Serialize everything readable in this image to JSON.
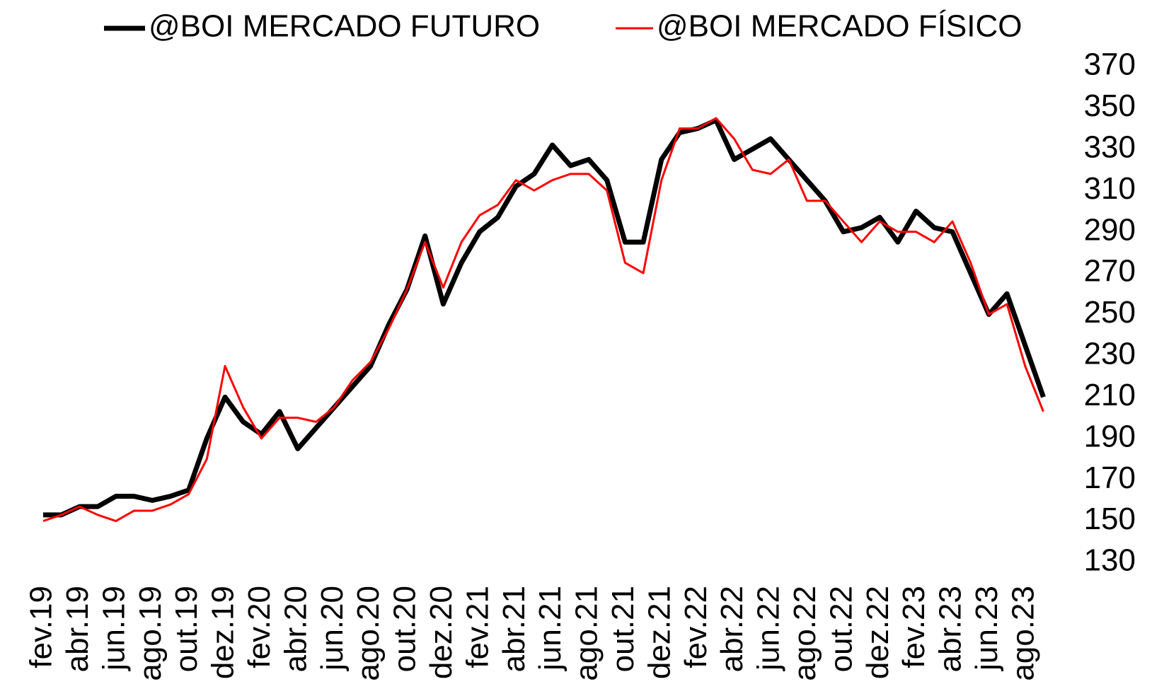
{
  "chart_data": {
    "type": "line",
    "categories": [
      "fev.19",
      null,
      "abr.19",
      null,
      "jun.19",
      null,
      "ago.19",
      null,
      "out.19",
      null,
      "dez.19",
      null,
      "fev.20",
      null,
      "abr.20",
      null,
      "jun.20",
      null,
      "ago.20",
      null,
      "out.20",
      null,
      "dez.20",
      null,
      "fev.21",
      null,
      "abr.21",
      null,
      "jun.21",
      null,
      "ago.21",
      null,
      "out.21",
      null,
      "dez.21",
      null,
      "fev.22",
      null,
      "abr.22",
      null,
      "jun.22",
      null,
      "ago.22",
      null,
      "out.22",
      null,
      "dez.22",
      null,
      "fev.23",
      null,
      "abr.23",
      null,
      "jun.23",
      null,
      "ago.23",
      null
    ],
    "series": [
      {
        "name": "@BOI MERCADO FUTURO",
        "color": "#000000",
        "values": [
          153,
          153,
          157,
          157,
          162,
          162,
          160,
          162,
          165,
          190,
          210,
          198,
          192,
          203,
          185,
          195,
          205,
          215,
          225,
          245,
          262,
          288,
          255,
          275,
          290,
          297,
          312,
          318,
          332,
          322,
          325,
          315,
          285,
          285,
          325,
          338,
          340,
          344,
          325,
          330,
          335,
          325,
          315,
          305,
          290,
          292,
          297,
          285,
          300,
          292,
          290,
          270,
          250,
          260,
          235,
          210
        ]
      },
      {
        "name": "@BOI MERCADO FÍSICO",
        "color": "#ff0000",
        "values": [
          150,
          153,
          157,
          153,
          150,
          155,
          155,
          158,
          163,
          180,
          225,
          205,
          190,
          200,
          200,
          198,
          205,
          218,
          227,
          243,
          262,
          285,
          263,
          285,
          298,
          303,
          315,
          310,
          315,
          318,
          318,
          310,
          275,
          270,
          315,
          340,
          340,
          345,
          335,
          320,
          318,
          325,
          305,
          305,
          295,
          285,
          295,
          290,
          290,
          285,
          295,
          275,
          250,
          255,
          225,
          203
        ]
      }
    ],
    "ylim": [
      130,
      370
    ],
    "yticks": [
      130,
      150,
      170,
      190,
      210,
      230,
      250,
      270,
      290,
      310,
      330,
      350,
      370
    ]
  }
}
